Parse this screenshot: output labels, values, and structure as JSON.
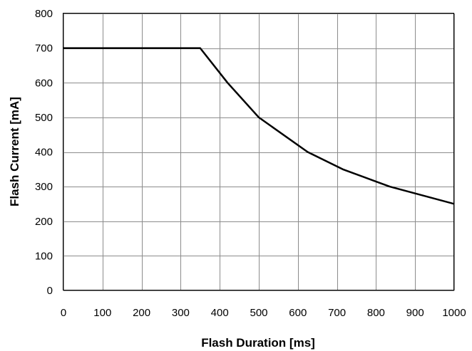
{
  "chart_data": {
    "type": "line",
    "title": "",
    "xlabel": "Flash Duration [ms]",
    "ylabel": "Flash Current [mA]",
    "xlim": [
      0,
      1000
    ],
    "ylim": [
      0,
      800
    ],
    "xticks": [
      0,
      100,
      200,
      300,
      400,
      500,
      600,
      700,
      800,
      900,
      1000
    ],
    "yticks": [
      0,
      100,
      200,
      300,
      400,
      500,
      600,
      700,
      800
    ],
    "grid": true,
    "legend": "none",
    "line_color": "#000000",
    "grid_color": "#8c8c8c",
    "series": [
      {
        "x": [
          0,
          350,
          420,
          500,
          625,
          715,
          835,
          1000
        ],
        "y": [
          700,
          700,
          600,
          500,
          400,
          350,
          300,
          250
        ]
      }
    ]
  }
}
